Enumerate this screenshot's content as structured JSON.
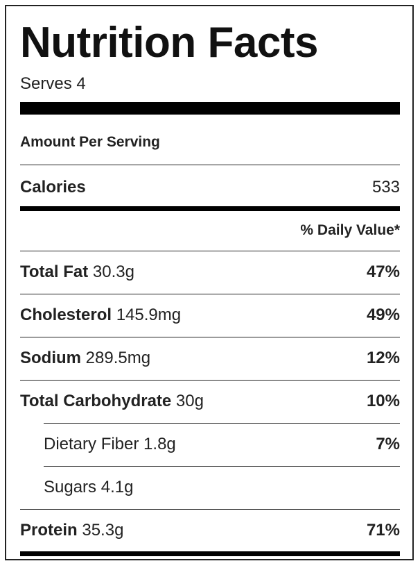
{
  "label": {
    "title": "Nutrition Facts",
    "serves": "Serves 4",
    "amount_per_serving": "Amount Per Serving",
    "calories_label": "Calories",
    "calories_value": "533",
    "daily_value_header": "% Daily Value*",
    "nutrients": [
      {
        "name": "Total Fat",
        "amount": "30.3g",
        "dv": "47%"
      },
      {
        "name": "Cholesterol",
        "amount": "145.9mg",
        "dv": "49%"
      },
      {
        "name": "Sodium",
        "amount": "289.5mg",
        "dv": "12%"
      },
      {
        "name": "Total Carbohydrate",
        "amount": "30g",
        "dv": "10%"
      },
      {
        "name": "Dietary Fiber",
        "amount": "1.8g",
        "dv": "7%"
      },
      {
        "name": "Sugars",
        "amount": "4.1g",
        "dv": ""
      },
      {
        "name": "Protein",
        "amount": "35.3g",
        "dv": "71%"
      }
    ]
  }
}
